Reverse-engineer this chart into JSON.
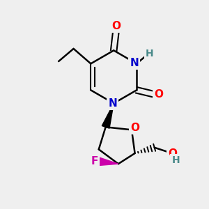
{
  "bg_color": "#efefef",
  "atom_colors": {
    "O": "#ff0000",
    "N": "#0000cc",
    "F": "#cc00aa",
    "C": "#000000",
    "H": "#4a8a8a"
  },
  "bond_color": "#000000"
}
